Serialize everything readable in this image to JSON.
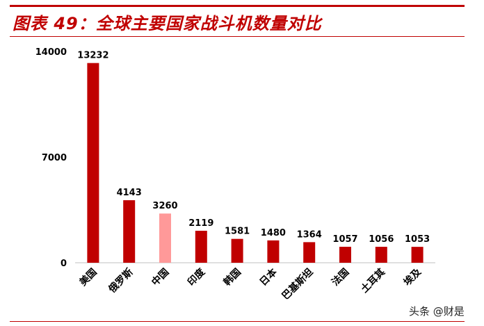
{
  "header": {
    "title": "图表 49：全球主要国家战斗机数量对比"
  },
  "watermark": {
    "text": "头条 @财是"
  },
  "colors": {
    "accent": "#c00000",
    "highlight": "#ff9999",
    "axis": "#bfbfbf",
    "text": "#000000"
  },
  "chart_data": {
    "type": "bar",
    "title": "",
    "xlabel": "",
    "ylabel": "",
    "categories": [
      "美国",
      "俄罗斯",
      "中国",
      "印度",
      "韩国",
      "日本",
      "巴基斯坦",
      "法国",
      "土耳其",
      "埃及"
    ],
    "values": [
      13232,
      4143,
      3260,
      2119,
      1581,
      1480,
      1364,
      1057,
      1056,
      1053
    ],
    "highlight_category": "中国",
    "y_ticks": [
      0,
      7000,
      14000
    ],
    "ylim": [
      0,
      14000
    ],
    "data_labels": true,
    "grid": false,
    "legend": "none"
  }
}
